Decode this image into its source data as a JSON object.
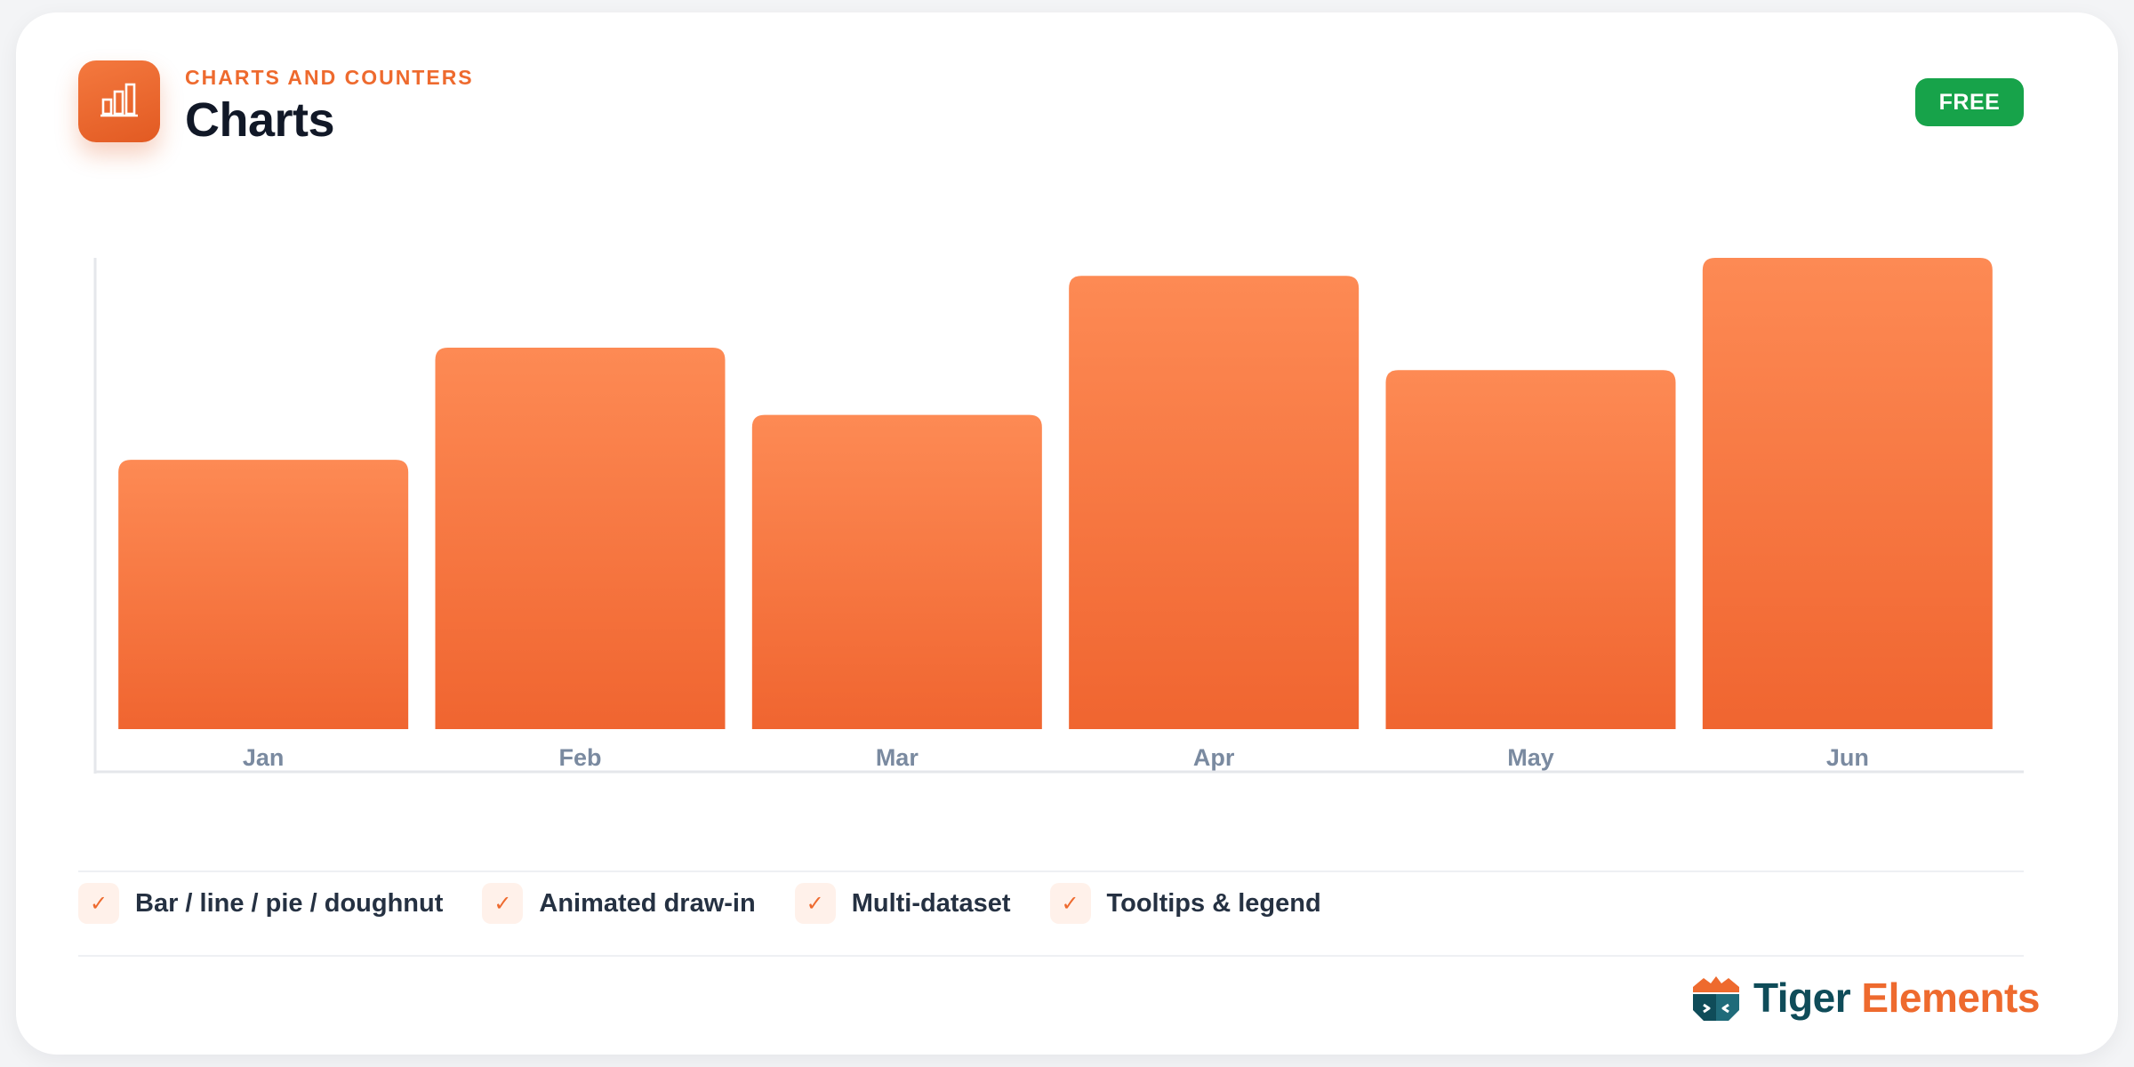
{
  "header": {
    "eyebrow": "CHARTS AND COUNTERS",
    "title": "Charts",
    "badge": "FREE",
    "icon": "bar-chart-icon"
  },
  "chart_data": {
    "type": "bar",
    "categories": [
      "Jan",
      "Feb",
      "Mar",
      "Apr",
      "May",
      "Jun"
    ],
    "values": [
      60,
      85,
      70,
      101,
      80,
      105
    ],
    "title": "",
    "xlabel": "",
    "ylabel": "",
    "ylim": [
      0,
      105
    ],
    "grid": false,
    "legend": "none",
    "colors": {
      "bar_top": "#fd8a54",
      "bar_bottom": "#f06530",
      "tick_label": "#7a8aa0",
      "axis": "#e5e7eb"
    }
  },
  "features": [
    {
      "label": "Bar / line / pie / doughnut",
      "icon": "check-icon"
    },
    {
      "label": "Animated draw-in",
      "icon": "check-icon"
    },
    {
      "label": "Multi-dataset",
      "icon": "check-icon"
    },
    {
      "label": "Tooltips & legend",
      "icon": "check-icon"
    }
  ],
  "brand": {
    "name_part1": "Tiger",
    "name_part2": "Elements",
    "icon": "tiger-elements-logo"
  },
  "colors": {
    "accent": "#ee6a2e",
    "badge": "#17a34a",
    "heading": "#111827"
  }
}
